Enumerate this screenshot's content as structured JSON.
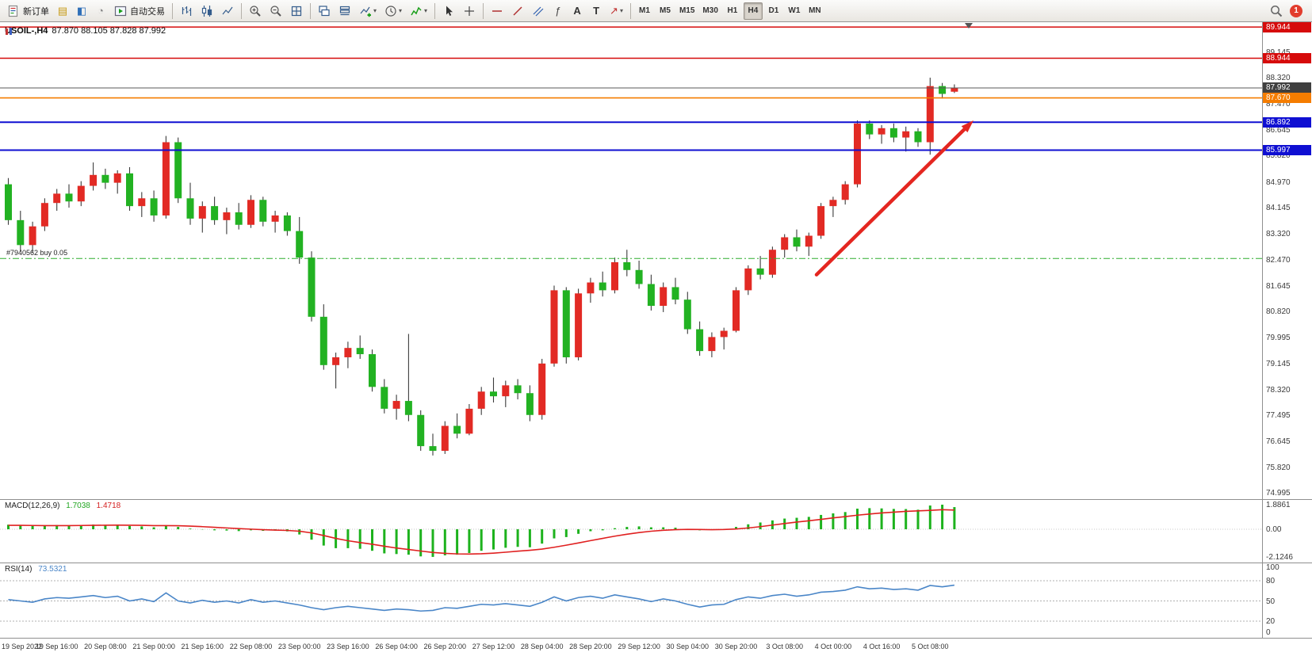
{
  "toolbar": {
    "groups": [
      {
        "items": [
          {
            "name": "new-order-button",
            "icon": "order-ticket-icon",
            "label": "新订单"
          },
          {
            "name": "profiles-button",
            "icon": "profiles-icon"
          },
          {
            "name": "market-watch-button",
            "icon": "market-watch-icon"
          },
          {
            "name": "navigator-button",
            "icon": "navigator-icon"
          },
          {
            "name": "autotrading-button",
            "icon": "autotrading-icon",
            "label": "自动交易"
          }
        ]
      },
      {
        "items": [
          {
            "name": "bar-chart-button",
            "icon": "bar-chart-icon"
          },
          {
            "name": "candle-chart-button",
            "icon": "candle-chart-icon"
          },
          {
            "name": "line-chart-button",
            "icon": "line-chart-icon"
          }
        ]
      },
      {
        "items": [
          {
            "name": "zoom-in-button",
            "icon": "zoom-in-icon"
          },
          {
            "name": "zoom-out-button",
            "icon": "zoom-out-icon"
          },
          {
            "name": "tile-windows-button",
            "icon": "tile-windows-icon"
          }
        ]
      },
      {
        "items": [
          {
            "name": "arrange-windows-button",
            "icon": "arrange-windows-icon"
          },
          {
            "name": "window-list-button",
            "icon": "window-list-icon"
          },
          {
            "name": "new-chart-button",
            "icon": "new-chart-icon",
            "dropdown": true
          },
          {
            "name": "chart-cycles-button",
            "icon": "clock-icon",
            "dropdown": true
          },
          {
            "name": "indicators-button",
            "icon": "indicators-icon",
            "dropdown": true
          }
        ]
      },
      {
        "items": [
          {
            "name": "cursor-button",
            "icon": "cursor-icon"
          },
          {
            "name": "crosshair-button",
            "icon": "crosshair-icon"
          }
        ]
      },
      {
        "items": [
          {
            "name": "horizontal-line-button",
            "icon": "horizontal-line-icon"
          },
          {
            "name": "trendline-button",
            "icon": "trendline-icon"
          },
          {
            "name": "channel-button",
            "icon": "channel-icon"
          },
          {
            "name": "fibonacci-button",
            "icon": "fibonacci-icon"
          },
          {
            "name": "text-button",
            "icon": "text-icon"
          },
          {
            "name": "label-button",
            "icon": "label-icon"
          },
          {
            "name": "arrows-button",
            "icon": "arrow-object-icon",
            "dropdown": true
          }
        ]
      }
    ],
    "timeframes": [
      {
        "label": "M1"
      },
      {
        "label": "M5"
      },
      {
        "label": "M15"
      },
      {
        "label": "M30"
      },
      {
        "label": "H1"
      },
      {
        "label": "H4",
        "active": true
      },
      {
        "label": "D1"
      },
      {
        "label": "W1"
      },
      {
        "label": "MN"
      }
    ],
    "right": {
      "badge": "1"
    }
  },
  "chart": {
    "title_symbol": "USOIL-,H4",
    "title_ohlc": "87.870 88.105 87.828 87.992",
    "order_line_label": "#7940562 buy 0.05",
    "price_axis_ticks": [
      89.145,
      88.32,
      87.47,
      86.645,
      85.82,
      84.97,
      84.145,
      83.32,
      82.47,
      81.645,
      80.82,
      79.995,
      79.145,
      78.32,
      77.495,
      76.645,
      75.82,
      74.995
    ],
    "price_labels": [
      {
        "value": "89.944",
        "price": 89.944,
        "bg": "#d60b0b"
      },
      {
        "value": "88.944",
        "price": 88.944,
        "bg": "#d60b0b"
      },
      {
        "value": "87.992",
        "price": 87.992,
        "bg": "#3f3f3f"
      },
      {
        "value": "87.670",
        "price": 87.67,
        "bg": "#f57d00"
      },
      {
        "value": "86.892",
        "price": 86.892,
        "bg": "#0f0fd2"
      },
      {
        "value": "85.997",
        "price": 85.997,
        "bg": "#0f0fd2"
      }
    ],
    "hlines": [
      {
        "name": "resistance-line-1",
        "price": 89.944,
        "color": "#d60b0b",
        "width": 1.5,
        "style": "solid",
        "interactable": true
      },
      {
        "name": "resistance-line-2",
        "price": 88.944,
        "color": "#d60b0b",
        "width": 1.5,
        "style": "solid",
        "interactable": true
      },
      {
        "name": "current-price-line",
        "price": 87.992,
        "color": "#5a5a5a",
        "width": 1,
        "style": "solid",
        "interactable": false
      },
      {
        "name": "alert-line",
        "price": 87.67,
        "color": "#f57d00",
        "width": 1.6,
        "style": "solid",
        "interactable": true
      },
      {
        "name": "support-line-1",
        "price": 86.892,
        "color": "#0f0fd2",
        "width": 2,
        "style": "solid",
        "interactable": true
      },
      {
        "name": "support-line-2",
        "price": 85.997,
        "color": "#0f0fd2",
        "width": 2,
        "style": "solid",
        "interactable": true
      },
      {
        "name": "open-order-line",
        "price": 82.52,
        "color": "#2fae2f",
        "width": 1,
        "style": "dashdot",
        "interactable": true
      }
    ],
    "time_labels": [
      "19 Sep 2022",
      "19 Sep 16:00",
      "20 Sep 08:00",
      "21 Sep 00:00",
      "21 Sep 16:00",
      "22 Sep 08:00",
      "23 Sep 00:00",
      "23 Sep 16:00",
      "26 Sep 04:00",
      "26 Sep 20:00",
      "27 Sep 12:00",
      "28 Sep 04:00",
      "28 Sep 20:00",
      "29 Sep 12:00",
      "30 Sep 04:00",
      "30 Sep 20:00",
      "3 Oct 08:00",
      "4 Oct 00:00",
      "4 Oct 16:00",
      "5 Oct 08:00"
    ]
  },
  "macd": {
    "label": "MACD(12,26,9)",
    "value_main": "1.7038",
    "value_signal": "1.4718",
    "axis_labels": [
      {
        "text": "1.8861",
        "value": 1.8861
      },
      {
        "text": "0.00",
        "value": 0
      },
      {
        "text": "-2.1246",
        "value": -2.1246
      }
    ]
  },
  "rsi": {
    "label": "RSI(14)",
    "value": "73.5321",
    "axis_labels": [
      {
        "text": "100",
        "value": 100
      },
      {
        "text": "80",
        "value": 80
      },
      {
        "text": "50",
        "value": 50
      },
      {
        "text": "20",
        "value": 20
      },
      {
        "text": "0",
        "value": 0
      }
    ],
    "levels": [
      80,
      50,
      20
    ]
  },
  "colors": {
    "bull": "#e22a24",
    "bear": "#22b222",
    "wick": "#3c3c3c",
    "macd_hist": "#1db21d",
    "macd_signal": "#e02020",
    "rsi_line": "#4a86c8",
    "arrow": "#e42620",
    "axis_text": "#3a3a3a"
  },
  "chart_data": {
    "type": "candlestick",
    "symbol": "USOIL-",
    "timeframe": "H4",
    "convention": "red-up-green-down",
    "y_range": [
      74.8,
      90.1
    ],
    "candles": [
      [
        84.9,
        85.1,
        83.6,
        83.75
      ],
      [
        83.75,
        84.05,
        82.75,
        82.95
      ],
      [
        82.95,
        83.7,
        82.7,
        83.55
      ],
      [
        83.55,
        84.45,
        83.4,
        84.3
      ],
      [
        84.3,
        84.75,
        84.05,
        84.6
      ],
      [
        84.6,
        84.9,
        84.15,
        84.35
      ],
      [
        84.35,
        85.0,
        84.2,
        84.85
      ],
      [
        84.85,
        85.6,
        84.7,
        85.2
      ],
      [
        85.2,
        85.4,
        84.75,
        84.95
      ],
      [
        84.95,
        85.35,
        84.6,
        85.25
      ],
      [
        85.25,
        85.45,
        84.05,
        84.2
      ],
      [
        84.2,
        84.65,
        83.85,
        84.45
      ],
      [
        84.45,
        84.7,
        83.7,
        83.9
      ],
      [
        83.9,
        86.45,
        83.8,
        86.25
      ],
      [
        86.25,
        86.4,
        84.3,
        84.45
      ],
      [
        84.45,
        84.95,
        83.6,
        83.8
      ],
      [
        83.8,
        84.35,
        83.35,
        84.2
      ],
      [
        84.2,
        84.5,
        83.6,
        83.75
      ],
      [
        83.75,
        84.15,
        83.3,
        84.0
      ],
      [
        84.0,
        84.3,
        83.45,
        83.6
      ],
      [
        83.6,
        84.55,
        83.5,
        84.4
      ],
      [
        84.4,
        84.5,
        83.55,
        83.7
      ],
      [
        83.7,
        84.05,
        83.35,
        83.9
      ],
      [
        83.9,
        84.0,
        83.25,
        83.4
      ],
      [
        83.4,
        83.85,
        82.35,
        82.55
      ],
      [
        82.55,
        82.75,
        80.5,
        80.65
      ],
      [
        80.65,
        81.05,
        78.95,
        79.1
      ],
      [
        79.1,
        79.5,
        78.35,
        79.35
      ],
      [
        79.35,
        79.85,
        79.0,
        79.65
      ],
      [
        79.65,
        80.05,
        79.3,
        79.45
      ],
      [
        79.45,
        79.6,
        78.25,
        78.4
      ],
      [
        78.4,
        78.65,
        77.55,
        77.7
      ],
      [
        77.7,
        78.15,
        77.35,
        77.95
      ],
      [
        77.95,
        80.1,
        77.3,
        77.5
      ],
      [
        77.5,
        77.65,
        76.35,
        76.5
      ],
      [
        76.5,
        76.9,
        76.2,
        76.35
      ],
      [
        76.35,
        77.3,
        76.25,
        77.15
      ],
      [
        77.15,
        77.55,
        76.75,
        76.9
      ],
      [
        76.9,
        77.85,
        76.85,
        77.7
      ],
      [
        77.7,
        78.4,
        77.5,
        78.25
      ],
      [
        78.25,
        78.7,
        77.9,
        78.1
      ],
      [
        78.1,
        78.6,
        77.75,
        78.45
      ],
      [
        78.45,
        78.65,
        78.0,
        78.2
      ],
      [
        78.2,
        78.45,
        77.3,
        77.5
      ],
      [
        77.5,
        79.3,
        77.35,
        79.15
      ],
      [
        79.15,
        81.65,
        79.05,
        81.5
      ],
      [
        81.5,
        81.6,
        79.15,
        79.35
      ],
      [
        79.35,
        81.55,
        79.25,
        81.4
      ],
      [
        81.4,
        81.9,
        81.1,
        81.75
      ],
      [
        81.75,
        82.1,
        81.3,
        81.5
      ],
      [
        81.5,
        82.55,
        81.4,
        82.4
      ],
      [
        82.4,
        82.8,
        81.95,
        82.15
      ],
      [
        82.15,
        82.45,
        81.55,
        81.7
      ],
      [
        81.7,
        82.0,
        80.85,
        81.0
      ],
      [
        81.0,
        81.75,
        80.8,
        81.6
      ],
      [
        81.6,
        81.9,
        81.05,
        81.2
      ],
      [
        81.2,
        81.45,
        80.1,
        80.25
      ],
      [
        80.25,
        80.5,
        79.4,
        79.55
      ],
      [
        79.55,
        80.15,
        79.35,
        80.0
      ],
      [
        80.0,
        80.3,
        79.6,
        80.2
      ],
      [
        80.2,
        81.6,
        80.15,
        81.5
      ],
      [
        81.5,
        82.3,
        81.35,
        82.2
      ],
      [
        82.2,
        82.6,
        81.85,
        82.0
      ],
      [
        82.0,
        82.9,
        81.9,
        82.8
      ],
      [
        82.8,
        83.3,
        82.55,
        83.2
      ],
      [
        83.2,
        83.45,
        82.75,
        82.9
      ],
      [
        82.9,
        83.35,
        82.6,
        83.25
      ],
      [
        83.25,
        84.3,
        83.15,
        84.2
      ],
      [
        84.2,
        84.5,
        83.85,
        84.4
      ],
      [
        84.4,
        85.0,
        84.25,
        84.9
      ],
      [
        84.9,
        86.95,
        84.8,
        86.85
      ],
      [
        86.85,
        86.95,
        86.35,
        86.5
      ],
      [
        86.5,
        86.8,
        86.2,
        86.7
      ],
      [
        86.7,
        86.85,
        86.25,
        86.4
      ],
      [
        86.4,
        86.75,
        85.95,
        86.6
      ],
      [
        86.6,
        86.7,
        86.1,
        86.25
      ],
      [
        86.25,
        88.32,
        85.85,
        88.05
      ],
      [
        88.05,
        88.15,
        87.65,
        87.8
      ],
      [
        87.87,
        88.105,
        87.828,
        87.992
      ]
    ],
    "macd_histogram": [
      0.35,
      0.32,
      0.28,
      0.3,
      0.32,
      0.3,
      0.33,
      0.36,
      0.32,
      0.34,
      0.25,
      0.22,
      0.15,
      0.3,
      0.18,
      0.05,
      -0.02,
      -0.08,
      -0.1,
      -0.14,
      -0.08,
      -0.12,
      -0.1,
      -0.16,
      -0.4,
      -0.8,
      -1.25,
      -1.45,
      -1.45,
      -1.5,
      -1.65,
      -1.85,
      -1.9,
      -1.95,
      -2.08,
      -2.12,
      -2.0,
      -1.95,
      -1.82,
      -1.65,
      -1.55,
      -1.42,
      -1.35,
      -1.38,
      -1.1,
      -0.7,
      -0.6,
      -0.35,
      -0.15,
      -0.08,
      0.08,
      0.18,
      0.22,
      0.15,
      0.15,
      0.12,
      0.02,
      -0.08,
      -0.05,
      0.02,
      0.18,
      0.38,
      0.52,
      0.68,
      0.82,
      0.88,
      0.95,
      1.1,
      1.22,
      1.32,
      1.58,
      1.62,
      1.6,
      1.56,
      1.55,
      1.5,
      1.82,
      1.886,
      1.7
    ],
    "macd_signal": [
      0.3,
      0.3,
      0.29,
      0.28,
      0.28,
      0.28,
      0.29,
      0.3,
      0.31,
      0.32,
      0.31,
      0.3,
      0.28,
      0.28,
      0.27,
      0.24,
      0.2,
      0.15,
      0.1,
      0.05,
      0.01,
      -0.03,
      -0.06,
      -0.09,
      -0.15,
      -0.28,
      -0.48,
      -0.7,
      -0.88,
      -1.02,
      -1.15,
      -1.3,
      -1.44,
      -1.55,
      -1.67,
      -1.78,
      -1.85,
      -1.89,
      -1.9,
      -1.88,
      -1.83,
      -1.76,
      -1.68,
      -1.61,
      -1.52,
      -1.38,
      -1.22,
      -1.05,
      -0.87,
      -0.7,
      -0.53,
      -0.38,
      -0.25,
      -0.15,
      -0.08,
      -0.03,
      -0.01,
      -0.02,
      -0.03,
      -0.02,
      0.02,
      0.1,
      0.2,
      0.32,
      0.44,
      0.55,
      0.65,
      0.76,
      0.87,
      0.97,
      1.08,
      1.17,
      1.25,
      1.31,
      1.37,
      1.41,
      1.45,
      1.5,
      1.47
    ],
    "rsi_values": [
      52,
      50,
      48,
      53,
      55,
      54,
      56,
      58,
      55,
      57,
      50,
      53,
      49,
      62,
      50,
      47,
      51,
      48,
      50,
      47,
      52,
      48,
      50,
      47,
      44,
      40,
      37,
      40,
      42,
      40,
      38,
      36,
      38,
      37,
      35,
      36,
      40,
      39,
      42,
      45,
      44,
      46,
      44,
      42,
      48,
      56,
      50,
      55,
      57,
      54,
      59,
      56,
      53,
      49,
      53,
      50,
      45,
      41,
      44,
      45,
      52,
      56,
      54,
      58,
      60,
      57,
      59,
      63,
      64,
      66,
      71,
      68,
      69,
      67,
      68,
      66,
      73,
      71,
      73.5
    ],
    "arrow_annotation": {
      "from_price": 82.0,
      "to_price": 86.95,
      "color": "#e42620"
    }
  }
}
